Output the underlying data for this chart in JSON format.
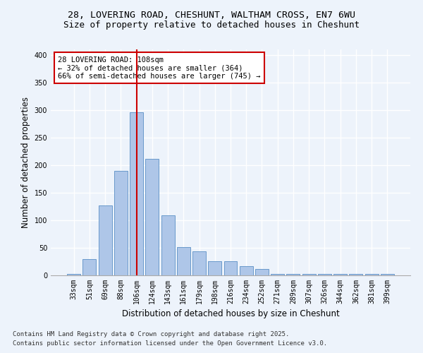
{
  "title_line1": "28, LOVERING ROAD, CHESHUNT, WALTHAM CROSS, EN7 6WU",
  "title_line2": "Size of property relative to detached houses in Cheshunt",
  "xlabel": "Distribution of detached houses by size in Cheshunt",
  "ylabel": "Number of detached properties",
  "categories": [
    "33sqm",
    "51sqm",
    "69sqm",
    "88sqm",
    "106sqm",
    "124sqm",
    "143sqm",
    "161sqm",
    "179sqm",
    "198sqm",
    "216sqm",
    "234sqm",
    "252sqm",
    "271sqm",
    "289sqm",
    "307sqm",
    "326sqm",
    "344sqm",
    "362sqm",
    "381sqm",
    "399sqm"
  ],
  "values": [
    2,
    30,
    127,
    190,
    296,
    212,
    109,
    51,
    44,
    25,
    25,
    17,
    12,
    2,
    2,
    2,
    2,
    3,
    2,
    2,
    3
  ],
  "bar_color": "#aec6e8",
  "bar_edge_color": "#5a8fc5",
  "background_color": "#edf3fb",
  "grid_color": "#ffffff",
  "vline_x_index": 4,
  "vline_color": "#cc0000",
  "annotation_text": "28 LOVERING ROAD: 108sqm\n← 32% of detached houses are smaller (364)\n66% of semi-detached houses are larger (745) →",
  "annotation_box_color": "#ffffff",
  "annotation_box_edge": "#cc0000",
  "ylim": [
    0,
    410
  ],
  "yticks": [
    0,
    50,
    100,
    150,
    200,
    250,
    300,
    350,
    400
  ],
  "footer_line1": "Contains HM Land Registry data © Crown copyright and database right 2025.",
  "footer_line2": "Contains public sector information licensed under the Open Government Licence v3.0.",
  "title_fontsize": 9.5,
  "title2_fontsize": 9,
  "axis_label_fontsize": 8.5,
  "tick_fontsize": 7,
  "footer_fontsize": 6.5,
  "annotation_fontsize": 7.5
}
